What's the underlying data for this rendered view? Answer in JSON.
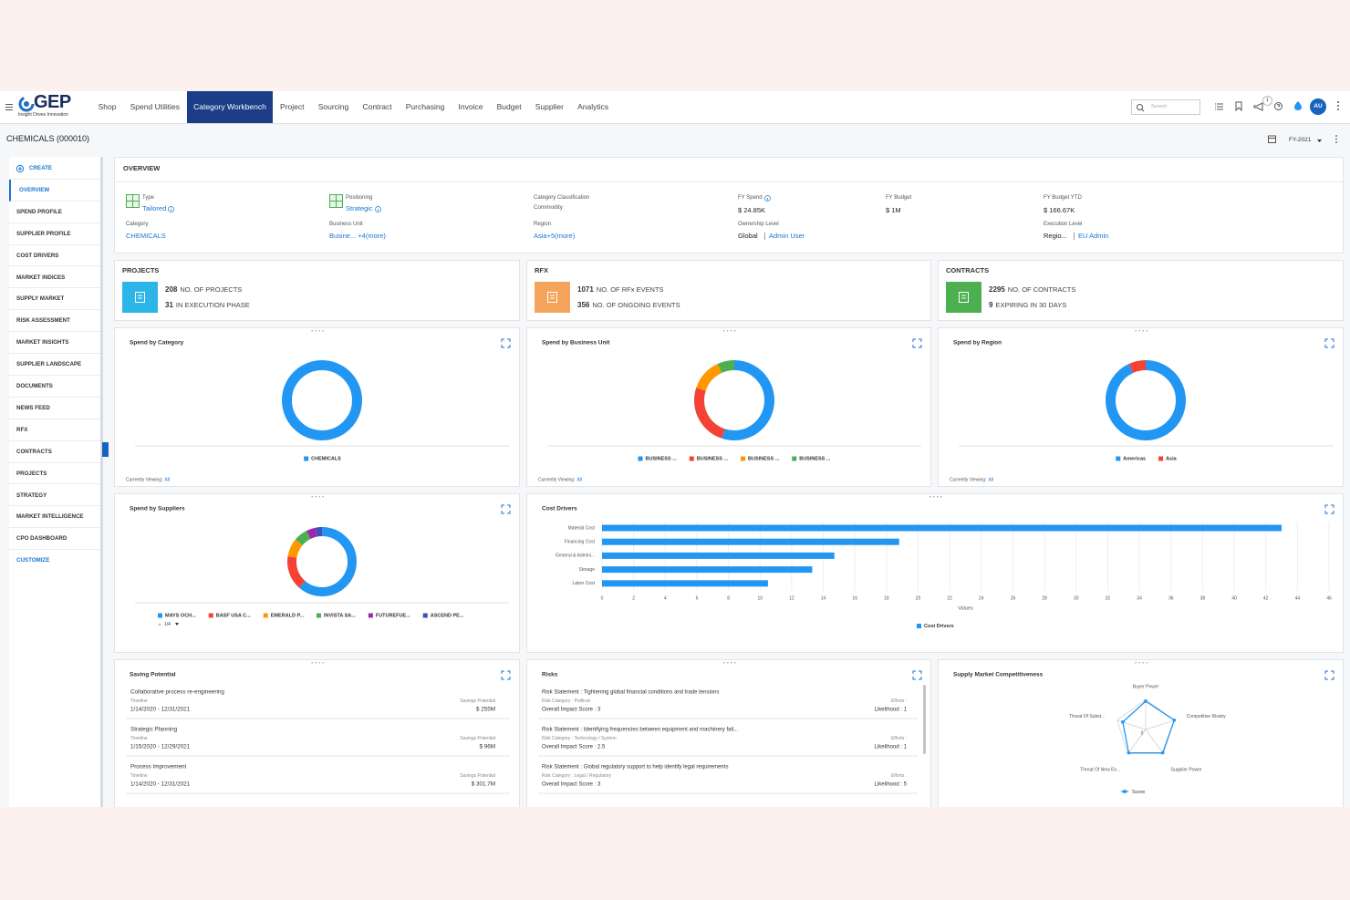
{
  "nav": {
    "logo": "GEP",
    "tagline": "Insight Drives Innovation",
    "items": [
      "Shop",
      "Spend Utilities",
      "Category Workbench",
      "Project",
      "Sourcing",
      "Contract",
      "Purchasing",
      "Invoice",
      "Budget",
      "Supplier",
      "Analytics"
    ],
    "active": "Category Workbench",
    "search_placeholder": "Search",
    "notifications": 1,
    "avatar": "AU"
  },
  "header": {
    "title": "CHEMICALS (000010)",
    "fiscal_year": "FY-2021"
  },
  "sidebar": {
    "items": [
      "CREATE",
      "OVERVIEW",
      "SPEND PROFILE",
      "SUPPLIER PROFILE",
      "COST DRIVERS",
      "MARKET INDICES",
      "SUPPLY MARKET",
      "RISK ASSESSMENT",
      "MARKET INSIGHTS",
      "SUPPLIER LANDSCAPE",
      "DOCUMENTS",
      "NEWS FEED",
      "RFX",
      "CONTRACTS",
      "PROJECTS",
      "STRATEGY",
      "MARKET INTELLIGENCE",
      "CPO DASHBOARD",
      "CUSTOMIZE"
    ],
    "active": "OVERVIEW"
  },
  "overview": {
    "title": "OVERVIEW",
    "columns": [
      {
        "top": {
          "label": "Type",
          "value": "Tailored"
        },
        "bottom": {
          "label": "Category",
          "value": "CHEMICALS"
        }
      },
      {
        "top": {
          "label": "Positioning",
          "value": "Strategic"
        },
        "bottom": {
          "label": "Business Unit",
          "value": "Busine... +4(more)"
        }
      },
      {
        "top": {
          "label": "Category Classification",
          "value": "Commodity"
        },
        "bottom": {
          "label": "Region",
          "value": "Asia+5(more)"
        }
      },
      {
        "top": {
          "label": "FY Spend",
          "value": "$ 24.85K"
        },
        "bottom": {
          "label": "Ownership Level",
          "value": "Global",
          "extra": "Admin User"
        }
      },
      {
        "top": {
          "label": "FY Budget",
          "value": "$ 1M"
        }
      },
      {
        "top": {
          "label": "FY Budget YTD",
          "value": "$ 166.67K"
        },
        "bottom": {
          "label": "Execution Level",
          "value": "Regio...",
          "extra": "EU Admin"
        }
      }
    ]
  },
  "kpis": [
    {
      "title": "PROJECTS",
      "color": "#2cb5e8",
      "rows": [
        {
          "value": 208,
          "label": "NO. OF PROJECTS"
        },
        {
          "value": 31,
          "label": "IN EXECUTION PHASE"
        }
      ]
    },
    {
      "title": "RFX",
      "color": "#f5a55b",
      "rows": [
        {
          "value": 1071,
          "label": "NO. OF RFx EVENTS"
        },
        {
          "value": 356,
          "label": "NO. OF ONGOING EVENTS"
        }
      ]
    },
    {
      "title": "CONTRACTS",
      "color": "#4caf50",
      "rows": [
        {
          "value": 2295,
          "label": "NO. OF CONTRACTS"
        },
        {
          "value": 9,
          "label": "EXPIRING IN 30 DAYS"
        }
      ]
    }
  ],
  "spend_by_category": {
    "title": "Spend by Category",
    "footer": "Currently Viewing:",
    "footer_value": "All",
    "chart": {
      "type": "donut",
      "categories": [
        "CHEMICALS"
      ],
      "values": [
        100
      ],
      "colors": [
        "#2196f3"
      ]
    }
  },
  "spend_by_business_unit": {
    "title": "Spend by Business Unit",
    "footer": "Currently Viewing:",
    "footer_value": "All",
    "chart": {
      "type": "donut",
      "categories": [
        "BUSINESS ...",
        "BUSINESS ...",
        "BUSINESS ...",
        "BUSINESS ..."
      ],
      "values": [
        55,
        25,
        13,
        7
      ],
      "colors": [
        "#2196f3",
        "#f44336",
        "#ff9800",
        "#4caf50"
      ]
    }
  },
  "spend_by_region": {
    "title": "Spend by Region",
    "footer": "Currently Viewing:",
    "footer_value": "All",
    "chart": {
      "type": "donut",
      "categories": [
        "Americas",
        "Asia"
      ],
      "values": [
        93,
        7
      ],
      "colors": [
        "#2196f3",
        "#f44336"
      ]
    }
  },
  "spend_by_suppliers": {
    "title": "Spend by Suppliers",
    "pager": "1/4",
    "chart": {
      "type": "donut",
      "categories": [
        "MAYS OCH...",
        "BASF USA C...",
        "EMERALD P...",
        "INVISTA SA...",
        "FUTUREFUE...",
        "ASCEND PE..."
      ],
      "values": [
        57,
        15,
        8,
        6,
        4,
        3
      ],
      "colors": [
        "#2196f3",
        "#f44336",
        "#ff9800",
        "#4caf50",
        "#9c27b0",
        "#3f51b5"
      ]
    }
  },
  "cost_drivers": {
    "title": "Cost Drivers",
    "chart": {
      "type": "hbar",
      "categories": [
        "Material Cost",
        "Financing Cost",
        "General & Admini...",
        "Storage",
        "Labor Cost"
      ],
      "values": [
        43,
        18.8,
        14.7,
        13.3,
        10.5
      ],
      "color": "#2196f3",
      "series_name": "Cost Drivers",
      "xlabel": "Values",
      "xlim": [
        0,
        46
      ],
      "xticks": [
        0,
        2,
        4,
        6,
        8,
        10,
        12,
        14,
        16,
        18,
        20,
        22,
        24,
        26,
        28,
        30,
        32,
        34,
        36,
        38,
        40,
        42,
        44,
        46
      ],
      "grid": true
    }
  },
  "saving_potential": {
    "title": "Saving Potential",
    "items": [
      {
        "name": "Collaborative process re-engineering",
        "timeline_label": "Timeline",
        "timeline": "1/14/2020 - 12/31/2021",
        "savings_label": "Savings Potential",
        "savings": "$ 255M"
      },
      {
        "name": "Strategic Planning",
        "timeline_label": "Timeline",
        "timeline": "1/15/2020 - 12/29/2021",
        "savings_label": "Savings Potential",
        "savings": "$ 96M"
      },
      {
        "name": "Process Improvement",
        "timeline_label": "Timeline",
        "timeline": "1/14/2020 - 12/31/2021",
        "savings_label": "Savings Potential",
        "savings": "$ 301.7M"
      }
    ]
  },
  "risks": {
    "title": "Risks",
    "items": [
      {
        "statement": "Risk Statement : Tightening global financial conditions and trade tensions",
        "category": "Risk Category : Political",
        "score": "Overall Impact Score : 3",
        "efforts": "Efforts :",
        "likelihood": "Likelihood : 1"
      },
      {
        "statement": "Risk Statement : Identifying frequencies between equipment and machinery fail...",
        "category": "Risk Category : Technology / System",
        "score": "Overall Impact Score : 2.5",
        "efforts": "Efforts :",
        "likelihood": "Likelihood : 1"
      },
      {
        "statement": "Risk Statement : Global regulatory support to help identify legal requirements",
        "category": "Risk Category : Legal / Regulatory",
        "score": "Overall Impact Score : 3",
        "efforts": "Efforts :",
        "likelihood": "Likelihood : 5"
      }
    ]
  },
  "supply_market": {
    "title": "Supply Market Competitiveness",
    "chart": {
      "type": "radar",
      "categories": [
        "Buyer Power",
        "Competitive Rivalry",
        "Supplier Power",
        "Threat Of New En...",
        "Threat Of Subst..."
      ],
      "series": [
        {
          "name": "Score",
          "color": "#2196f3",
          "values": [
            4.7,
            5,
            4.8,
            4.8,
            4
          ]
        }
      ],
      "rlim": [
        0,
        5
      ],
      "rticks": [
        0
      ]
    }
  }
}
